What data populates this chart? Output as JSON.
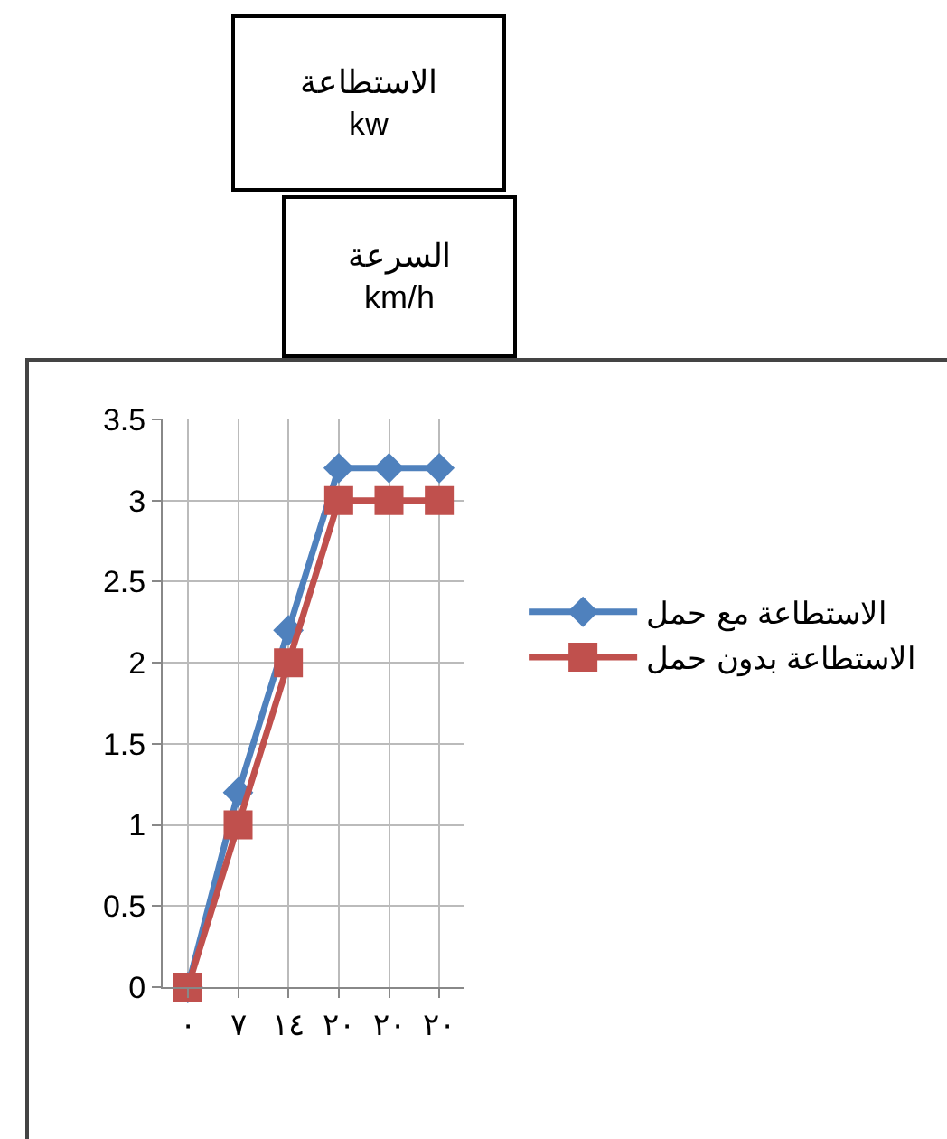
{
  "chart_data": {
    "type": "line",
    "annotations": [
      "الاستطاعة\nkw",
      "السرعة\nkm/h"
    ],
    "categories": [
      "٠",
      "٧",
      "١٤",
      "٢٠",
      "٢٠",
      "٢٠"
    ],
    "series": [
      {
        "name": "الاستطاعة مع حمل",
        "color": "#4f81bd",
        "marker": "diamond",
        "values": [
          0,
          1.2,
          2.2,
          3.2,
          3.2,
          3.2
        ]
      },
      {
        "name": "الاستطاعة بدون حمل",
        "color": "#c0504d",
        "marker": "square",
        "values": [
          0,
          1,
          2,
          3,
          3,
          3
        ]
      }
    ],
    "ylim": [
      0,
      3.5
    ],
    "yticks": [
      0,
      0.5,
      1,
      1.5,
      2,
      2.5,
      3,
      3.5
    ],
    "grid": true,
    "legend": "right",
    "line_style": "solid"
  }
}
